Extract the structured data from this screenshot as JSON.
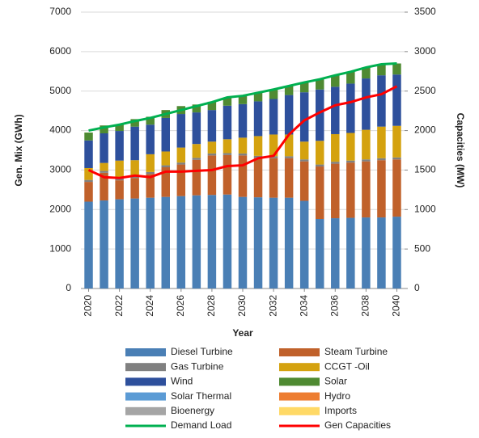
{
  "chart_data": {
    "type": "bar",
    "stacked": true,
    "x_label": "Year",
    "y_label": "Gen. Mix (GWh)",
    "y2_label": "Capacities (MW)",
    "x": [
      2020,
      2021,
      2022,
      2023,
      2024,
      2025,
      2026,
      2027,
      2028,
      2029,
      2030,
      2031,
      2032,
      2033,
      2034,
      2035,
      2036,
      2037,
      2038,
      2039,
      2040
    ],
    "xlim": [
      2019.5,
      2040.5
    ],
    "xticks": [
      2020,
      2022,
      2024,
      2026,
      2028,
      2030,
      2032,
      2034,
      2036,
      2038,
      2040
    ],
    "ylim": [
      0,
      7000
    ],
    "yticks": [
      0,
      1000,
      2000,
      3000,
      4000,
      5000,
      6000,
      7000
    ],
    "y2lim": [
      0,
      3500
    ],
    "y2ticks": [
      0,
      500,
      1000,
      1500,
      2000,
      2500,
      3000,
      3500
    ],
    "grid": true,
    "series": [
      {
        "name": "Diesel Turbine",
        "color": "#4a7fb5",
        "values": [
          2200,
          2230,
          2260,
          2280,
          2300,
          2320,
          2340,
          2360,
          2370,
          2380,
          2320,
          2310,
          2300,
          2300,
          2220,
          1760,
          1780,
          1790,
          1800,
          1800,
          1820
        ]
      },
      {
        "name": "Steam Turbine",
        "color": "#c0612b",
        "values": [
          500,
          700,
          480,
          520,
          600,
          750,
          800,
          900,
          1000,
          1000,
          1050,
          1000,
          1000,
          1000,
          1000,
          1330,
          1380,
          1400,
          1420,
          1450,
          1450
        ]
      },
      {
        "name": "Gas Turbine",
        "color": "#808080",
        "values": [
          50,
          50,
          50,
          50,
          50,
          50,
          50,
          50,
          50,
          50,
          50,
          50,
          50,
          50,
          50,
          50,
          50,
          50,
          50,
          50,
          50
        ]
      },
      {
        "name": "CCGT -Oil",
        "color": "#d4a20f",
        "values": [
          300,
          200,
          450,
          400,
          450,
          350,
          380,
          350,
          300,
          350,
          400,
          500,
          550,
          550,
          450,
          600,
          700,
          700,
          750,
          800,
          800
        ]
      },
      {
        "name": "Wind",
        "color": "#2e509c",
        "values": [
          700,
          750,
          750,
          850,
          750,
          850,
          850,
          800,
          800,
          850,
          850,
          880,
          900,
          1000,
          1250,
          1300,
          1200,
          1250,
          1300,
          1300,
          1300
        ]
      },
      {
        "name": "Solar",
        "color": "#4f8a32",
        "values": [
          200,
          200,
          160,
          190,
          200,
          200,
          200,
          200,
          210,
          210,
          210,
          220,
          230,
          230,
          250,
          260,
          290,
          300,
          280,
          280,
          280
        ]
      },
      {
        "name": "Solar Thermal",
        "color": "#5b9bd5",
        "values": [
          0,
          0,
          0,
          0,
          0,
          0,
          0,
          0,
          0,
          0,
          0,
          0,
          0,
          0,
          0,
          0,
          0,
          0,
          0,
          0,
          0
        ]
      },
      {
        "name": "Hydro",
        "color": "#ed7d31",
        "values": [
          0,
          0,
          0,
          0,
          0,
          0,
          0,
          0,
          0,
          0,
          0,
          0,
          0,
          0,
          0,
          0,
          0,
          0,
          0,
          0,
          0
        ]
      },
      {
        "name": "Bioenergy",
        "color": "#a5a5a5",
        "values": [
          0,
          0,
          0,
          0,
          0,
          0,
          0,
          0,
          0,
          0,
          0,
          0,
          0,
          0,
          0,
          0,
          0,
          0,
          0,
          0,
          0
        ]
      },
      {
        "name": "Imports",
        "color": "#ffd966",
        "values": [
          0,
          0,
          0,
          0,
          0,
          0,
          0,
          0,
          0,
          0,
          0,
          0,
          0,
          0,
          0,
          0,
          0,
          0,
          0,
          0,
          0
        ]
      },
      {
        "name": "Demand Load",
        "color": "#00b050",
        "type": "line",
        "values": [
          4000,
          4080,
          4150,
          4240,
          4320,
          4420,
          4520,
          4620,
          4720,
          4840,
          4880,
          4960,
          5040,
          5130,
          5220,
          5300,
          5400,
          5490,
          5600,
          5680,
          5700
        ]
      },
      {
        "name": "Gen Capacities",
        "color": "#ff0000",
        "type": "line",
        "axis": "y2",
        "values": [
          1500,
          1410,
          1400,
          1430,
          1410,
          1480,
          1480,
          1490,
          1500,
          1550,
          1560,
          1650,
          1680,
          1950,
          2130,
          2230,
          2320,
          2360,
          2420,
          2460,
          2560
        ]
      }
    ]
  }
}
